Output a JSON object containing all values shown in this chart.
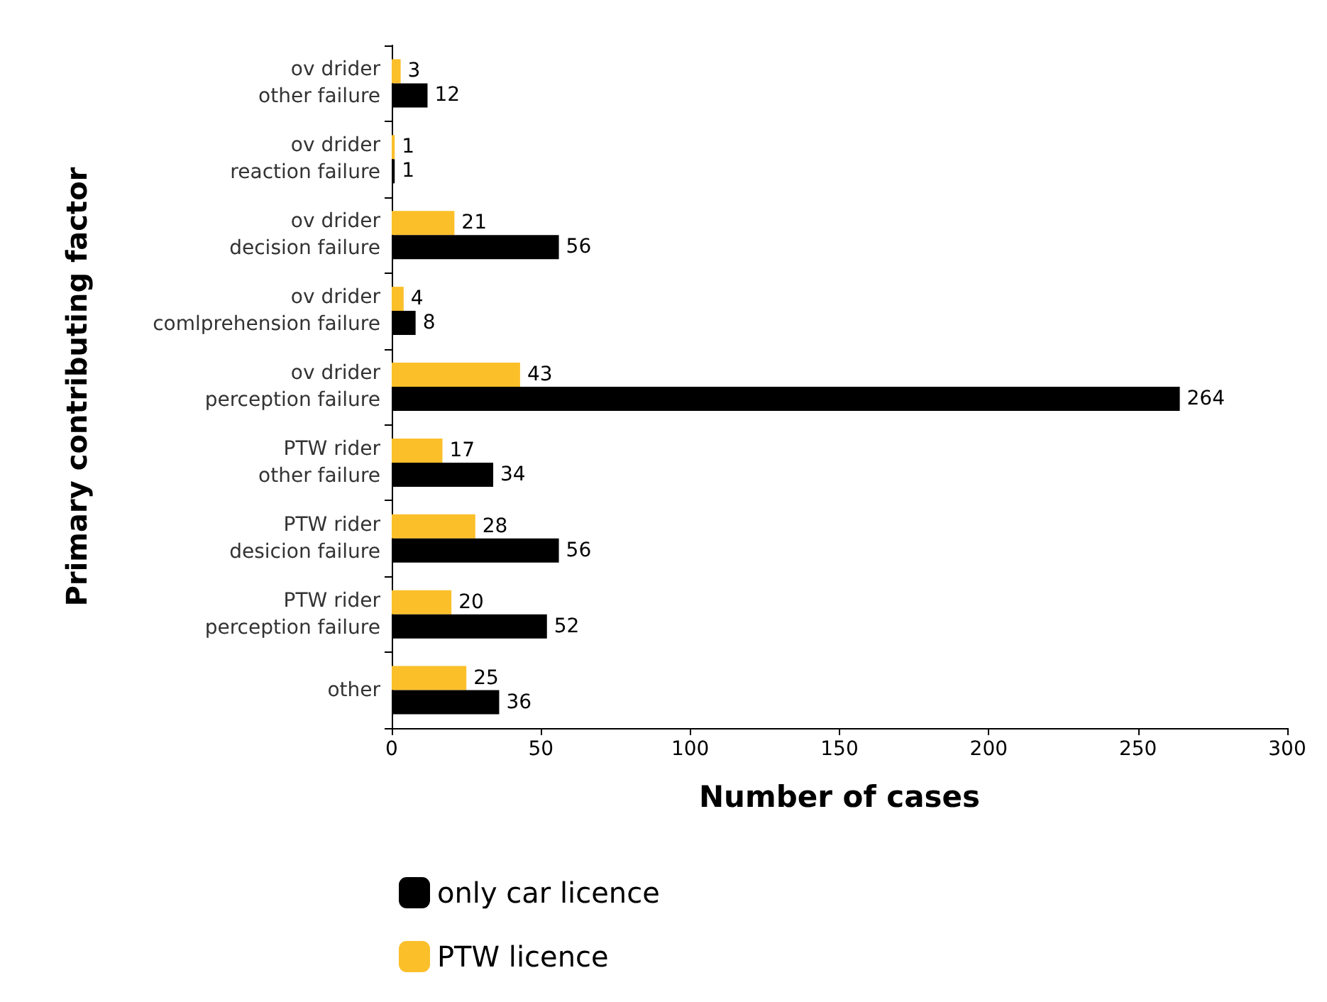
{
  "chart_data": {
    "type": "bar",
    "orientation": "horizontal",
    "xlabel": "Number of cases",
    "ylabel": "Primary contributing factor",
    "categories": [
      "ov drider\nother failure",
      "ov drider\nreaction failure",
      "ov drider\ndecision failure",
      "ov drider\ncomlprehension failure",
      "ov drider\nperception failure",
      "PTW rider\nother failure",
      "PTW rider\ndesicion failure",
      "PTW rider\nperception failure",
      "other"
    ],
    "series": [
      {
        "name": "only car licence",
        "color": "#000000",
        "values": [
          12,
          1,
          56,
          8,
          264,
          34,
          56,
          52,
          36
        ]
      },
      {
        "name": "PTW licence",
        "color": "#fbbf2a",
        "values": [
          3,
          1,
          21,
          4,
          43,
          17,
          28,
          20,
          25
        ]
      }
    ],
    "xlim": [
      0,
      300
    ],
    "xticks": [
      0,
      50,
      100,
      150,
      200,
      250,
      300
    ],
    "data_labels": true,
    "grid": false,
    "legend": "bottom left"
  }
}
